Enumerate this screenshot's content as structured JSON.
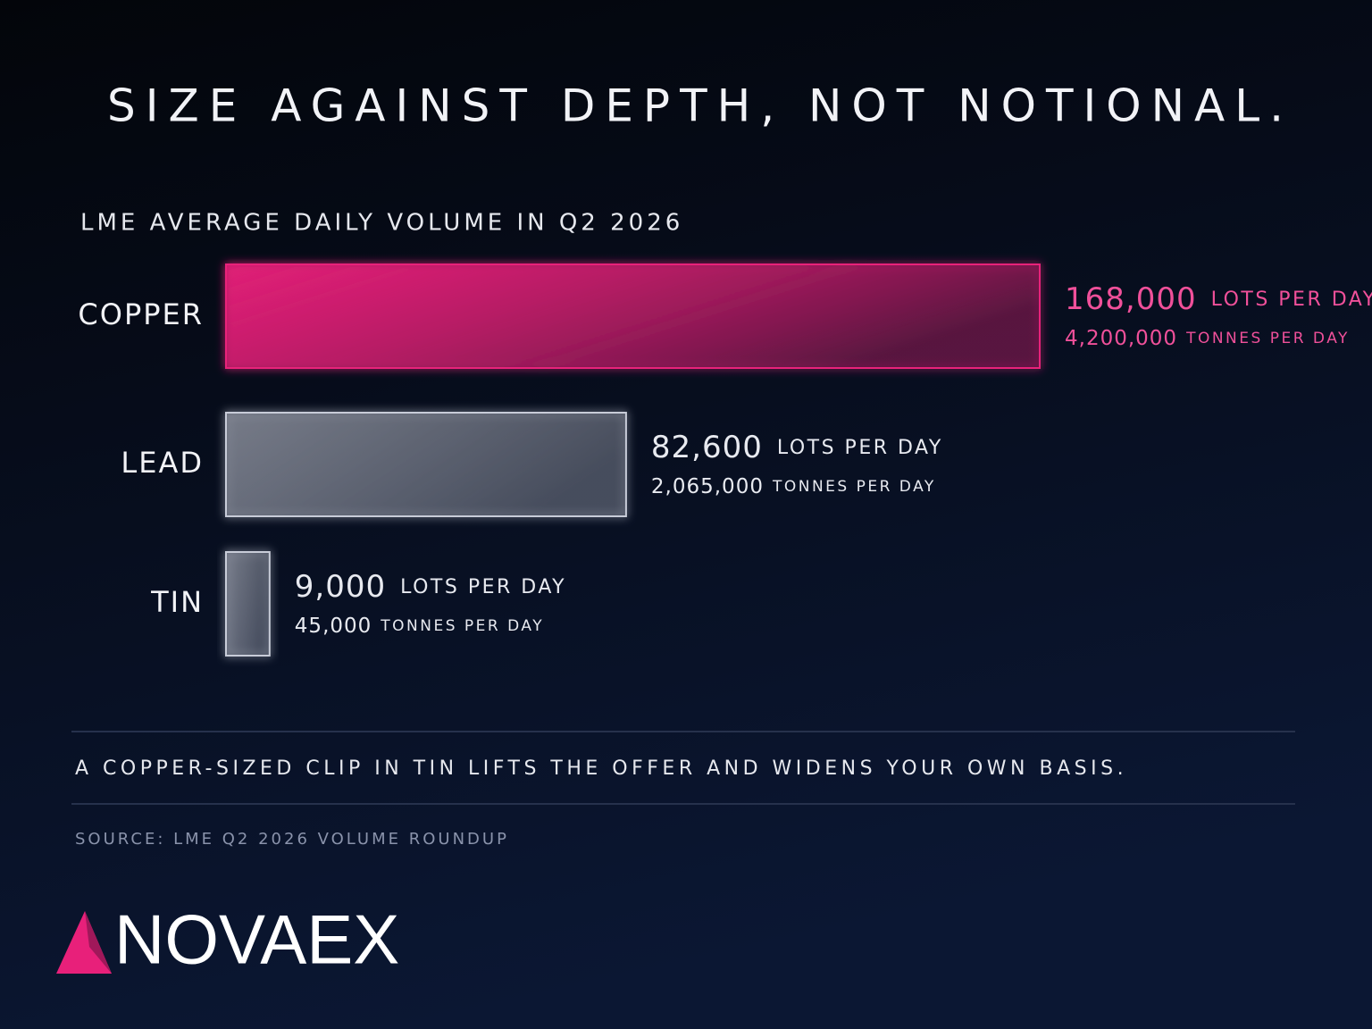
{
  "chart_data": {
    "type": "bar",
    "orientation": "horizontal",
    "title": "SIZE AGAINST DEPTH, NOT NOTIONAL.",
    "subtitle": "LME AVERAGE DAILY VOLUME IN Q2 2026",
    "categories": [
      "COPPER",
      "LEAD",
      "TIN"
    ],
    "colors": [
      "#e8207a",
      "#c8ccd8",
      "#c8ccd8"
    ],
    "label_colors": [
      "#f0509a",
      "#e8eaf0",
      "#e8eaf0"
    ],
    "series": [
      {
        "name": "LOTS PER DAY",
        "values": [
          168000,
          82600,
          9000
        ],
        "value_labels": [
          "168,000",
          "82,600",
          "9,000"
        ]
      },
      {
        "name": "TONNES PER DAY",
        "values": [
          4200000,
          2065000,
          45000
        ],
        "value_labels": [
          "4,200,000",
          "2,065,000",
          "45,000"
        ]
      }
    ],
    "xlim": [
      0,
      168000
    ],
    "annotation": "A COPPER-SIZED CLIP IN TIN LIFTS THE OFFER AND WIDENS YOUR OWN BASIS.",
    "source": "SOURCE: LME Q2 2026 VOLUME ROUNDUP",
    "brand": "NOVAEX"
  }
}
